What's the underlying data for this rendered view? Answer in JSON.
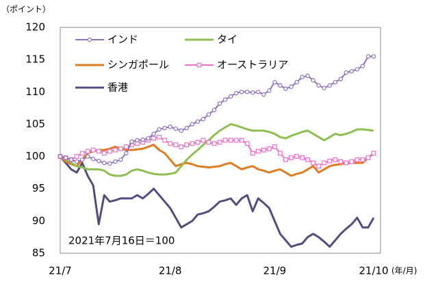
{
  "chart_data": {
    "type": "line",
    "y_label": "（ポイント）",
    "x_unit": "(年/月)",
    "annotation": "2021年7月16日＝100",
    "categories": [
      "21/7",
      null,
      null,
      null,
      null,
      null,
      null,
      null,
      null,
      null,
      null,
      null,
      null,
      null,
      null,
      null,
      null,
      null,
      null,
      null,
      "21/8",
      null,
      null,
      null,
      null,
      null,
      null,
      null,
      null,
      null,
      null,
      null,
      null,
      null,
      null,
      null,
      null,
      null,
      null,
      "21/9",
      null,
      null,
      null,
      null,
      null,
      null,
      null,
      null,
      null,
      null,
      null,
      null,
      null,
      null,
      null,
      null,
      null,
      "21/10"
    ],
    "ylim": [
      85,
      120
    ],
    "yticks": [
      85,
      90,
      95,
      100,
      105,
      110,
      115,
      120
    ],
    "series": [
      {
        "name": "インド",
        "color": "#8e6fc0",
        "marker": "circle",
        "values": [
          100,
          99.8,
          99.5,
          99.2,
          99.5,
          100,
          99.6,
          99.3,
          99,
          98.9,
          99.2,
          99.5,
          100.5,
          102.3,
          102.5,
          102.6,
          102.8,
          103.5,
          104.2,
          104.4,
          104.6,
          104.3,
          104,
          104.4,
          105,
          105.4,
          105.8,
          106.5,
          107.2,
          108.2,
          108.8,
          109.3,
          109.8,
          110,
          110,
          109.9,
          110,
          109.6,
          110.2,
          111.5,
          111,
          110.5,
          110.8,
          111.5,
          112.3,
          112.5,
          111.8,
          111,
          110.6,
          111,
          111.5,
          112,
          113,
          113.2,
          113.5,
          114,
          115.5,
          115.5
        ]
      },
      {
        "name": "タイ",
        "color": "#8cbf50",
        "marker": null,
        "values": [
          100,
          99.5,
          99,
          98.5,
          98.3,
          98,
          98,
          98,
          97.8,
          97.2,
          97,
          97,
          97.2,
          97.8,
          98,
          97.8,
          97.5,
          97.3,
          97.2,
          97.2,
          97.3,
          97.5,
          98.5,
          99.5,
          100.3,
          101,
          101.8,
          102.5,
          103.3,
          104,
          104.5,
          105,
          104.8,
          104.5,
          104.2,
          104,
          104,
          104,
          103.8,
          103.5,
          103,
          102.8,
          103.2,
          103.5,
          103.8,
          104,
          103.5,
          103,
          102.5,
          103,
          103.5,
          103.3,
          103.5,
          103.8,
          104.2,
          104.2,
          104.1,
          104
        ]
      },
      {
        "name": "シンガポール",
        "color": "#e07b20",
        "marker": null,
        "values": [
          100,
          99.2,
          98.8,
          98.5,
          99.5,
          100.5,
          100.8,
          101,
          101,
          101.2,
          101.5,
          101.2,
          101,
          101,
          101.1,
          101.2,
          101.5,
          101.8,
          101,
          100.5,
          99.5,
          98.5,
          98.8,
          99,
          98.8,
          98.5,
          98.4,
          98.3,
          98.4,
          98.5,
          98.8,
          99,
          98.5,
          98,
          98.3,
          98.5,
          98,
          97.8,
          97.5,
          97.8,
          98,
          97.5,
          97,
          97.3,
          97.5,
          98,
          98.5,
          97.5,
          98,
          98.5,
          98.7,
          98.8,
          99,
          99,
          99,
          99,
          99.8,
          100.5
        ]
      },
      {
        "name": "オーストラリア",
        "color": "#ee6ec8",
        "marker": "square",
        "values": [
          100,
          99.8,
          99.5,
          100,
          100.5,
          100.8,
          101,
          100.8,
          100.5,
          100.8,
          101,
          101.2,
          101.5,
          101.8,
          102,
          102.2,
          102.5,
          102.8,
          103,
          102.5,
          102,
          101.8,
          101.5,
          101.8,
          102,
          102.2,
          102.5,
          102.2,
          102,
          102.2,
          102.5,
          102.5,
          102.5,
          102.5,
          102,
          100.5,
          100.8,
          101,
          101.2,
          101.5,
          100.5,
          99.5,
          99.8,
          100,
          99.8,
          99.5,
          99,
          98.5,
          99,
          99.3,
          99.5,
          99.2,
          99,
          99.2,
          99.5,
          99.5,
          99.8,
          100.5
        ]
      },
      {
        "name": "香港",
        "color": "#574a7e",
        "marker": null,
        "values": [
          100,
          99,
          98,
          97.5,
          99,
          97,
          95.5,
          89.5,
          94,
          93,
          93.2,
          93.5,
          93.5,
          93.5,
          94,
          93.5,
          94.2,
          95,
          94,
          93,
          92,
          90.5,
          89,
          89.5,
          90,
          91,
          91.2,
          91.5,
          92.2,
          93,
          93.2,
          93.5,
          92.5,
          93.5,
          94,
          91.5,
          93.5,
          92.8,
          92,
          90,
          88,
          87,
          86,
          86.3,
          86.5,
          87.5,
          88,
          87.5,
          86.8,
          86,
          87,
          88,
          88.8,
          89.5,
          90.5,
          89,
          89,
          90.5
        ]
      }
    ]
  }
}
